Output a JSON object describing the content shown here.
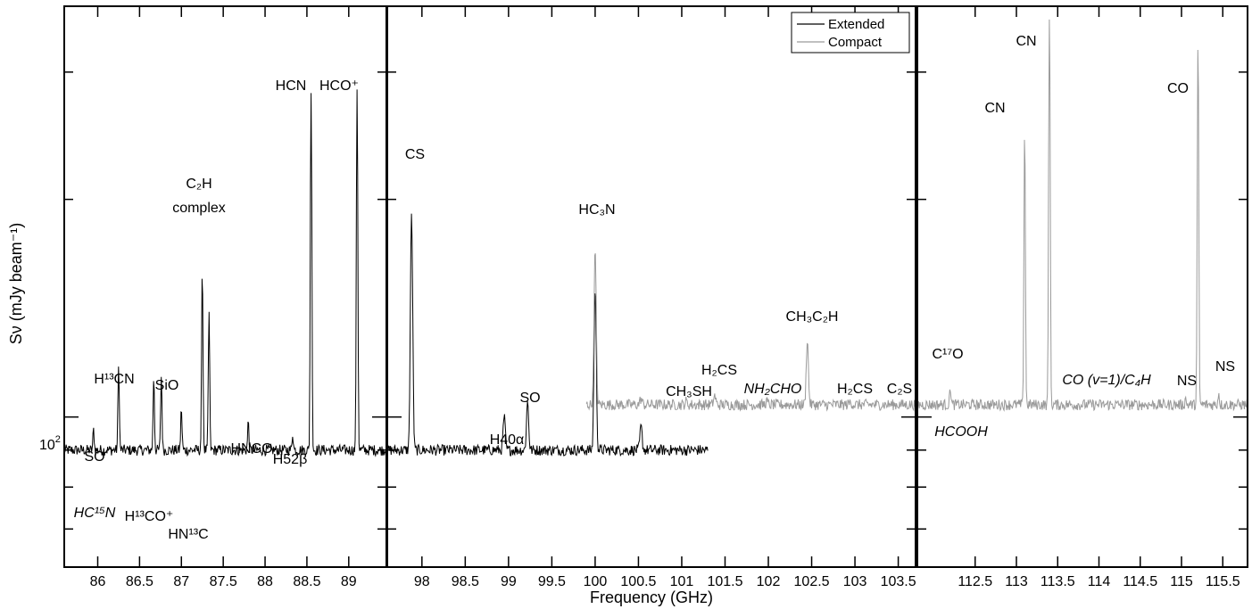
{
  "chart_data": {
    "type": "line",
    "xlabel": "Frequency (GHz)",
    "ylabel": "Sν (mJy beam⁻¹)",
    "yscale": "log",
    "legend": {
      "placement": "top-right of middle panel",
      "entries": [
        {
          "label": "Extended",
          "color": "#000000"
        },
        {
          "label": "Compact",
          "color": "#9a9a9a"
        }
      ]
    },
    "y_tick_labels": [
      {
        "value": 100,
        "base": "10",
        "exp": "2"
      }
    ],
    "panels": [
      {
        "xlim": [
          85.6,
          89.45
        ],
        "xticks": [
          "86",
          "86.5",
          "87",
          "87.5",
          "88",
          "88.5",
          "89"
        ],
        "series": [
          {
            "name": "Extended",
            "color": "#000000",
            "peaks": [
              [
                85.95,
                96
              ],
              [
                86.25,
                118
              ],
              [
                86.67,
                114
              ],
              [
                86.76,
                114
              ],
              [
                87.0,
                103
              ],
              [
                87.25,
                160
              ],
              [
                87.33,
                140
              ],
              [
                87.8,
                99
              ],
              [
                88.33,
                95
              ],
              [
                88.55,
                280
              ],
              [
                89.1,
                285
              ]
            ]
          }
        ],
        "labels": [
          {
            "text": "SO",
            "x": 85.95
          },
          {
            "text": "H¹³CN",
            "x": 86.25
          },
          {
            "text": "SiO",
            "x": 86.8
          },
          {
            "text": "C₂H",
            "x": 87.25
          },
          {
            "text": "complex",
            "x": 87.25
          },
          {
            "text": "HC¹⁵N",
            "x": 85.95
          },
          {
            "text": "H¹³CO⁺",
            "x": 86.75
          },
          {
            "text": "HN¹³C",
            "x": 87.1
          },
          {
            "text": "HNCO",
            "x": 87.93
          },
          {
            "text": "H52β",
            "x": 88.35
          },
          {
            "text": "HCN",
            "x": 88.35
          },
          {
            "text": "HCO⁺",
            "x": 88.95
          }
        ]
      },
      {
        "xlim": [
          97.6,
          103.7
        ],
        "xticks": [
          "98",
          "98.5",
          "99",
          "99.5",
          "100",
          "100.5",
          "101",
          "101.5",
          "102",
          "102.5",
          "103",
          "103.5"
        ],
        "series": [
          {
            "name": "Extended",
            "color": "#000000",
            "x_range": [
              97.6,
              101.3
            ],
            "peaks": [
              [
                97.88,
                190
              ],
              [
                98.95,
                100
              ],
              [
                99.22,
                105
              ],
              [
                100.0,
                150
              ],
              [
                100.53,
                97
              ]
            ]
          },
          {
            "name": "Compact",
            "color": "#9a9a9a",
            "x_range": [
              99.9,
              103.7
            ],
            "peaks": [
              [
                100.0,
                170
              ],
              [
                100.53,
                106
              ],
              [
                101.05,
                105
              ],
              [
                101.38,
                107
              ],
              [
                101.98,
                105
              ],
              [
                102.45,
                128
              ],
              [
                102.95,
                105
              ],
              [
                103.55,
                104
              ]
            ]
          }
        ],
        "labels": [
          {
            "text": "CS",
            "x": 97.88
          },
          {
            "text": "H40α",
            "x": 98.95
          },
          {
            "text": "SO",
            "x": 99.22
          },
          {
            "text": "HC₃N",
            "x": 100.0
          },
          {
            "text": "CH₃SH",
            "x": 101.03
          },
          {
            "text": "H₂CS",
            "x": 101.38
          },
          {
            "text": "NH₂CHO",
            "x": 101.98
          },
          {
            "text": "CH₃C₂H",
            "x": 102.45
          },
          {
            "text": "H₂CS",
            "x": 102.95
          },
          {
            "text": "C₂S",
            "x": 103.5
          }
        ]
      },
      {
        "xlim": [
          111.8,
          115.8
        ],
        "xticks": [
          "112.5",
          "113",
          "113.5",
          "114",
          "114.5",
          "115",
          "115.5"
        ],
        "series": [
          {
            "name": "Compact",
            "color": "#9a9a9a",
            "peaks": [
              [
                112.2,
                110
              ],
              [
                113.1,
                250
              ],
              [
                113.4,
                360
              ],
              [
                115.05,
                106
              ],
              [
                115.2,
                330
              ],
              [
                115.45,
                108
              ]
            ]
          }
        ],
        "labels": [
          {
            "text": "C¹⁷O",
            "x": 112.2
          },
          {
            "text": "HCOOH",
            "x": 112.3
          },
          {
            "text": "CN",
            "x": 113.0
          },
          {
            "text": "CN",
            "x": 113.33
          },
          {
            "text": "CO (v=1)/C₄H",
            "x": 114.3
          },
          {
            "text": "NS",
            "x": 115.0
          },
          {
            "text": "CO",
            "x": 115.1
          },
          {
            "text": "NS",
            "x": 115.45
          }
        ]
      }
    ]
  }
}
